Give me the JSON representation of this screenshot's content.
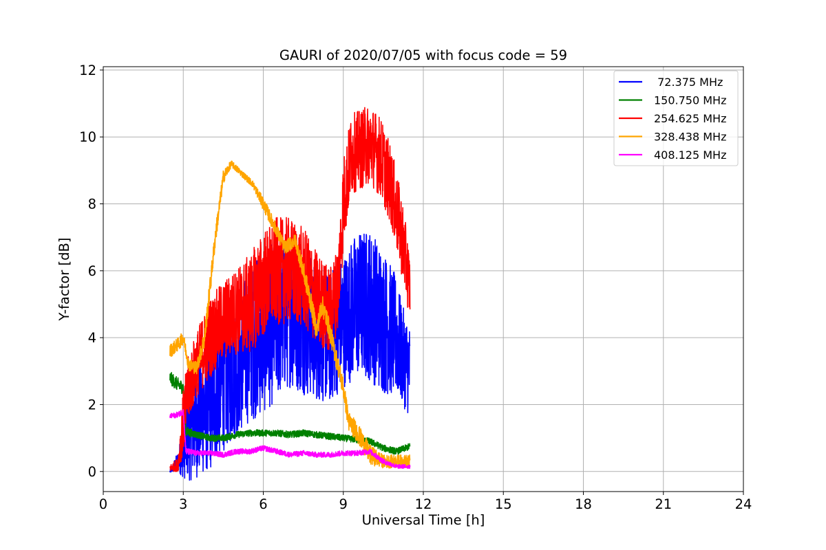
{
  "chart_data": {
    "type": "line",
    "title": "GAURI of 2020/07/05 with focus code = 59",
    "xlabel": "Universal Time [h]",
    "ylabel": "Y-factor [dB]",
    "xlim": [
      0,
      24
    ],
    "ylim": [
      -0.6,
      12.1
    ],
    "xticks": [
      0,
      3,
      6,
      9,
      12,
      15,
      18,
      21,
      24
    ],
    "yticks": [
      0,
      2,
      4,
      6,
      8,
      10,
      12
    ],
    "grid": true,
    "legend_position": "top-right",
    "series": [
      {
        "name": " 72.375 MHz",
        "color": "#0000ff",
        "points": [
          [
            2.5,
            0.0
          ],
          [
            2.8,
            0.3
          ],
          [
            3.0,
            0.6
          ],
          [
            3.2,
            1.2
          ],
          [
            3.5,
            1.6
          ],
          [
            4.0,
            2.0
          ],
          [
            4.5,
            2.8
          ],
          [
            5.0,
            3.2
          ],
          [
            5.5,
            3.8
          ],
          [
            6.0,
            4.2
          ],
          [
            6.5,
            4.5
          ],
          [
            7.0,
            4.8
          ],
          [
            7.5,
            4.5
          ],
          [
            8.0,
            4.2
          ],
          [
            8.5,
            4.0
          ],
          [
            9.0,
            4.5
          ],
          [
            9.5,
            5.0
          ],
          [
            10.0,
            5.0
          ],
          [
            10.5,
            4.5
          ],
          [
            11.0,
            4.0
          ],
          [
            11.2,
            3.5
          ],
          [
            11.5,
            3.0
          ]
        ],
        "noise": [
          0.05,
          0.3,
          0.8,
          1.5,
          1.8,
          2.0,
          2.2,
          2.2,
          2.3,
          2.5,
          2.4,
          2.3,
          2.2,
          2.1,
          2.0,
          2.0,
          2.2,
          2.3,
          2.2,
          1.8,
          1.5,
          1.4
        ]
      },
      {
        "name": "150.750 MHz",
        "color": "#008000",
        "points": [
          [
            2.5,
            2.8
          ],
          [
            2.8,
            2.6
          ],
          [
            3.0,
            2.5
          ],
          [
            3.1,
            1.2
          ],
          [
            3.5,
            1.1
          ],
          [
            4.0,
            1.0
          ],
          [
            4.5,
            1.0
          ],
          [
            5.0,
            1.1
          ],
          [
            5.5,
            1.15
          ],
          [
            6.0,
            1.15
          ],
          [
            6.5,
            1.15
          ],
          [
            7.0,
            1.1
          ],
          [
            7.5,
            1.15
          ],
          [
            8.0,
            1.1
          ],
          [
            8.5,
            1.05
          ],
          [
            9.0,
            1.0
          ],
          [
            9.5,
            0.95
          ],
          [
            10.0,
            0.9
          ],
          [
            10.5,
            0.7
          ],
          [
            11.0,
            0.6
          ],
          [
            11.5,
            0.75
          ]
        ],
        "noise": [
          0.2,
          0.2,
          0.2,
          0.15,
          0.1,
          0.1,
          0.1,
          0.1,
          0.1,
          0.1,
          0.1,
          0.1,
          0.1,
          0.1,
          0.1,
          0.1,
          0.1,
          0.1,
          0.1,
          0.1,
          0.1
        ]
      },
      {
        "name": "254.625 MHz",
        "color": "#ff0000",
        "points": [
          [
            2.5,
            0.1
          ],
          [
            2.8,
            0.2
          ],
          [
            3.0,
            1.5
          ],
          [
            3.2,
            2.5
          ],
          [
            3.5,
            3.2
          ],
          [
            4.0,
            4.0
          ],
          [
            4.5,
            4.5
          ],
          [
            5.0,
            4.8
          ],
          [
            5.5,
            5.0
          ],
          [
            6.0,
            5.6
          ],
          [
            6.5,
            6.0
          ],
          [
            7.0,
            6.0
          ],
          [
            7.5,
            5.8
          ],
          [
            8.0,
            5.2
          ],
          [
            8.5,
            4.8
          ],
          [
            8.8,
            5.5
          ],
          [
            9.0,
            8.0
          ],
          [
            9.3,
            9.5
          ],
          [
            9.6,
            9.6
          ],
          [
            10.0,
            9.8
          ],
          [
            10.4,
            9.4
          ],
          [
            10.8,
            8.5
          ],
          [
            11.2,
            7.0
          ],
          [
            11.5,
            5.5
          ]
        ],
        "noise": [
          0.1,
          0.2,
          1.0,
          1.0,
          1.0,
          1.2,
          1.2,
          1.3,
          1.5,
          1.6,
          1.6,
          1.6,
          1.5,
          1.4,
          1.3,
          1.3,
          1.4,
          1.2,
          1.2,
          1.2,
          1.2,
          1.2,
          1.2,
          1.0
        ]
      },
      {
        "name": "328.438 MHz",
        "color": "#ffa500",
        "points": [
          [
            2.5,
            3.6
          ],
          [
            2.8,
            3.8
          ],
          [
            3.0,
            4.0
          ],
          [
            3.2,
            3.2
          ],
          [
            3.5,
            3.1
          ],
          [
            3.8,
            4.0
          ],
          [
            4.0,
            5.5
          ],
          [
            4.2,
            7.0
          ],
          [
            4.5,
            8.8
          ],
          [
            4.8,
            9.2
          ],
          [
            5.2,
            8.9
          ],
          [
            5.6,
            8.6
          ],
          [
            6.0,
            8.0
          ],
          [
            6.5,
            7.2
          ],
          [
            6.8,
            6.7
          ],
          [
            7.0,
            6.8
          ],
          [
            7.2,
            6.9
          ],
          [
            7.5,
            6.0
          ],
          [
            7.8,
            5.0
          ],
          [
            8.0,
            4.2
          ],
          [
            8.2,
            5.0
          ],
          [
            8.4,
            4.5
          ],
          [
            8.7,
            3.5
          ],
          [
            9.0,
            2.5
          ],
          [
            9.2,
            1.5
          ],
          [
            9.5,
            1.2
          ],
          [
            10.0,
            0.5
          ],
          [
            10.5,
            0.3
          ],
          [
            11.0,
            0.3
          ],
          [
            11.5,
            0.3
          ]
        ],
        "noise": [
          0.2,
          0.2,
          0.2,
          0.2,
          0.2,
          0.3,
          0.3,
          0.3,
          0.2,
          0.1,
          0.1,
          0.1,
          0.2,
          0.2,
          0.2,
          0.2,
          0.2,
          0.3,
          0.3,
          0.3,
          0.3,
          0.3,
          0.3,
          0.3,
          0.3,
          0.3,
          0.3,
          0.2,
          0.2,
          0.2
        ]
      },
      {
        "name": "408.125 MHz",
        "color": "#ff00ff",
        "points": [
          [
            2.5,
            1.65
          ],
          [
            2.8,
            1.7
          ],
          [
            3.0,
            1.8
          ],
          [
            3.1,
            0.6
          ],
          [
            3.5,
            0.55
          ],
          [
            4.0,
            0.55
          ],
          [
            4.5,
            0.5
          ],
          [
            5.0,
            0.6
          ],
          [
            5.5,
            0.6
          ],
          [
            6.0,
            0.7
          ],
          [
            6.5,
            0.6
          ],
          [
            7.0,
            0.5
          ],
          [
            7.5,
            0.55
          ],
          [
            8.0,
            0.5
          ],
          [
            8.5,
            0.5
          ],
          [
            9.0,
            0.55
          ],
          [
            9.5,
            0.55
          ],
          [
            10.0,
            0.6
          ],
          [
            10.5,
            0.3
          ],
          [
            11.0,
            0.15
          ],
          [
            11.5,
            0.15
          ]
        ],
        "noise": [
          0.08,
          0.08,
          0.1,
          0.1,
          0.08,
          0.08,
          0.08,
          0.08,
          0.08,
          0.08,
          0.08,
          0.08,
          0.08,
          0.08,
          0.08,
          0.08,
          0.08,
          0.08,
          0.08,
          0.06,
          0.06
        ]
      }
    ]
  }
}
